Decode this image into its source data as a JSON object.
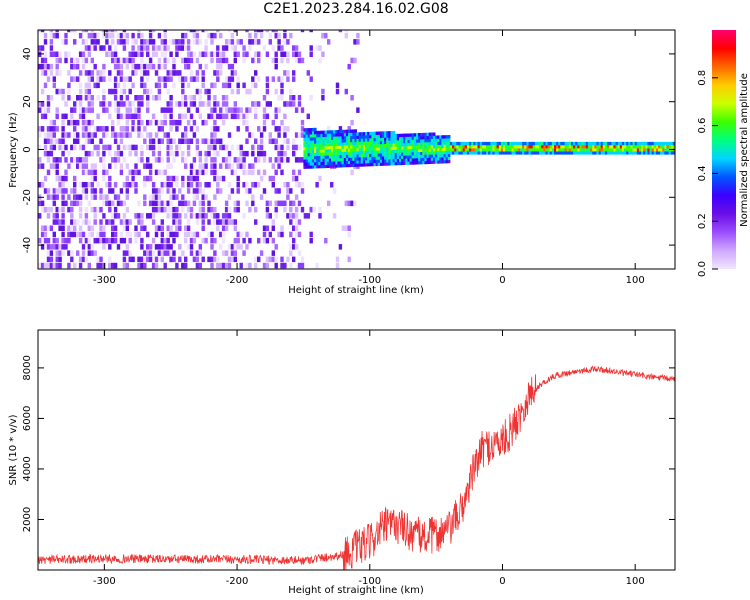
{
  "title": "C2E1.2023.284.16.02.G08",
  "colors": {
    "snr_line": "#ee3333",
    "axis": "#000000",
    "colormap": [
      "#f0e6ff",
      "#cfa8ff",
      "#9b4dff",
      "#6a0fe6",
      "#3b00ff",
      "#0055ff",
      "#00d5ff",
      "#00ff80",
      "#3cff00",
      "#ccff00",
      "#ffcc00",
      "#ff6600",
      "#ff0000",
      "#ff0070"
    ]
  },
  "chart_data": [
    {
      "type": "heatmap",
      "xlabel": "Height of straight line (km)",
      "ylabel": "Frequency (Hz)",
      "xlim": [
        -350,
        130
      ],
      "ylim": [
        -50,
        50
      ],
      "xticks": [
        -300,
        -200,
        -100,
        0,
        100
      ],
      "yticks": [
        -40,
        -20,
        0,
        20,
        40
      ],
      "colorbar": {
        "label": "Normalized spectral amplitude",
        "range": [
          0,
          1
        ],
        "ticks": [
          "0.0",
          "0.2",
          "0.4",
          "0.6",
          "0.8"
        ]
      },
      "features": {
        "diffuse_noise_region_km": [
          -350,
          -150
        ],
        "signal_band_start_km": -150,
        "signal_band_center_hz": 0,
        "signal_band_half_width_hz_at_start": 8,
        "signal_band_half_width_hz_at_end": 2
      }
    },
    {
      "type": "line",
      "xlabel": "Height of straight line (km)",
      "ylabel": "SNR (10 * v/v)",
      "xlim": [
        -350,
        130
      ],
      "ylim": [
        0,
        9500
      ],
      "xticks": [
        -300,
        -200,
        -100,
        0,
        100
      ],
      "yticks": [
        2000,
        4000,
        6000,
        8000
      ],
      "series": [
        {
          "x": [
            -350,
            -300,
            -250,
            -200,
            -150,
            -120,
            -100,
            -90,
            -80,
            -70,
            -60,
            -50,
            -40,
            -30,
            -25,
            -20,
            -15,
            -10,
            -5,
            0,
            5,
            10,
            15,
            20,
            30,
            40,
            50,
            60,
            70,
            80,
            90,
            100,
            110,
            120,
            130
          ],
          "y": [
            400,
            450,
            430,
            420,
            380,
            600,
            1100,
            1700,
            1800,
            1500,
            1300,
            1400,
            1600,
            2500,
            3400,
            4200,
            4800,
            4900,
            5000,
            5100,
            5400,
            5800,
            6400,
            6900,
            7400,
            7700,
            7800,
            7900,
            7950,
            7900,
            7800,
            7750,
            7650,
            7600,
            7550
          ]
        }
      ]
    }
  ]
}
